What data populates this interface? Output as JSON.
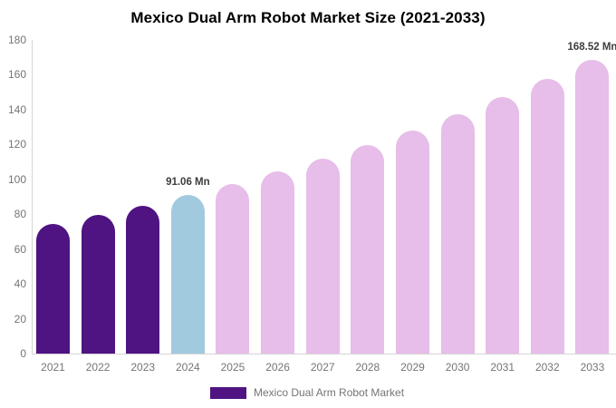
{
  "title": "Mexico Dual Arm Robot Market Size (2021-2033)",
  "legend": {
    "label": "Mexico Dual Arm Robot Market"
  },
  "colors": {
    "historical": "#4F1482",
    "base_year": "#A2CADF",
    "forecast": "#E7BDE9",
    "axis_line": "#D6D6D6",
    "tick_text": "#757575",
    "data_label_text": "#3D3D3D",
    "title_text": "#000000",
    "background": "#FFFFFF"
  },
  "chart_data": {
    "type": "bar",
    "title": "Mexico Dual Arm Robot Market Size (2021-2033)",
    "unit": "Mn",
    "categories": [
      "2021",
      "2022",
      "2023",
      "2024",
      "2025",
      "2026",
      "2027",
      "2028",
      "2029",
      "2030",
      "2031",
      "2032",
      "2033"
    ],
    "values": [
      74.2,
      79.4,
      85.0,
      91.06,
      97.5,
      104.4,
      111.8,
      119.7,
      128.2,
      137.3,
      147.0,
      157.4,
      168.52
    ],
    "bar_roles": [
      "historical",
      "historical",
      "historical",
      "base_year",
      "forecast",
      "forecast",
      "forecast",
      "forecast",
      "forecast",
      "forecast",
      "forecast",
      "forecast",
      "forecast"
    ],
    "annotations": [
      {
        "category": "2024",
        "text": "91.06 Mn"
      },
      {
        "category": "2033",
        "text": "168.52 Mn"
      }
    ],
    "xlabel": "",
    "ylabel": "",
    "ylim": [
      0,
      180
    ],
    "y_ticks": [
      0,
      20,
      40,
      60,
      80,
      100,
      120,
      140,
      160,
      180
    ],
    "grid": false,
    "legend_position": "bottom"
  }
}
